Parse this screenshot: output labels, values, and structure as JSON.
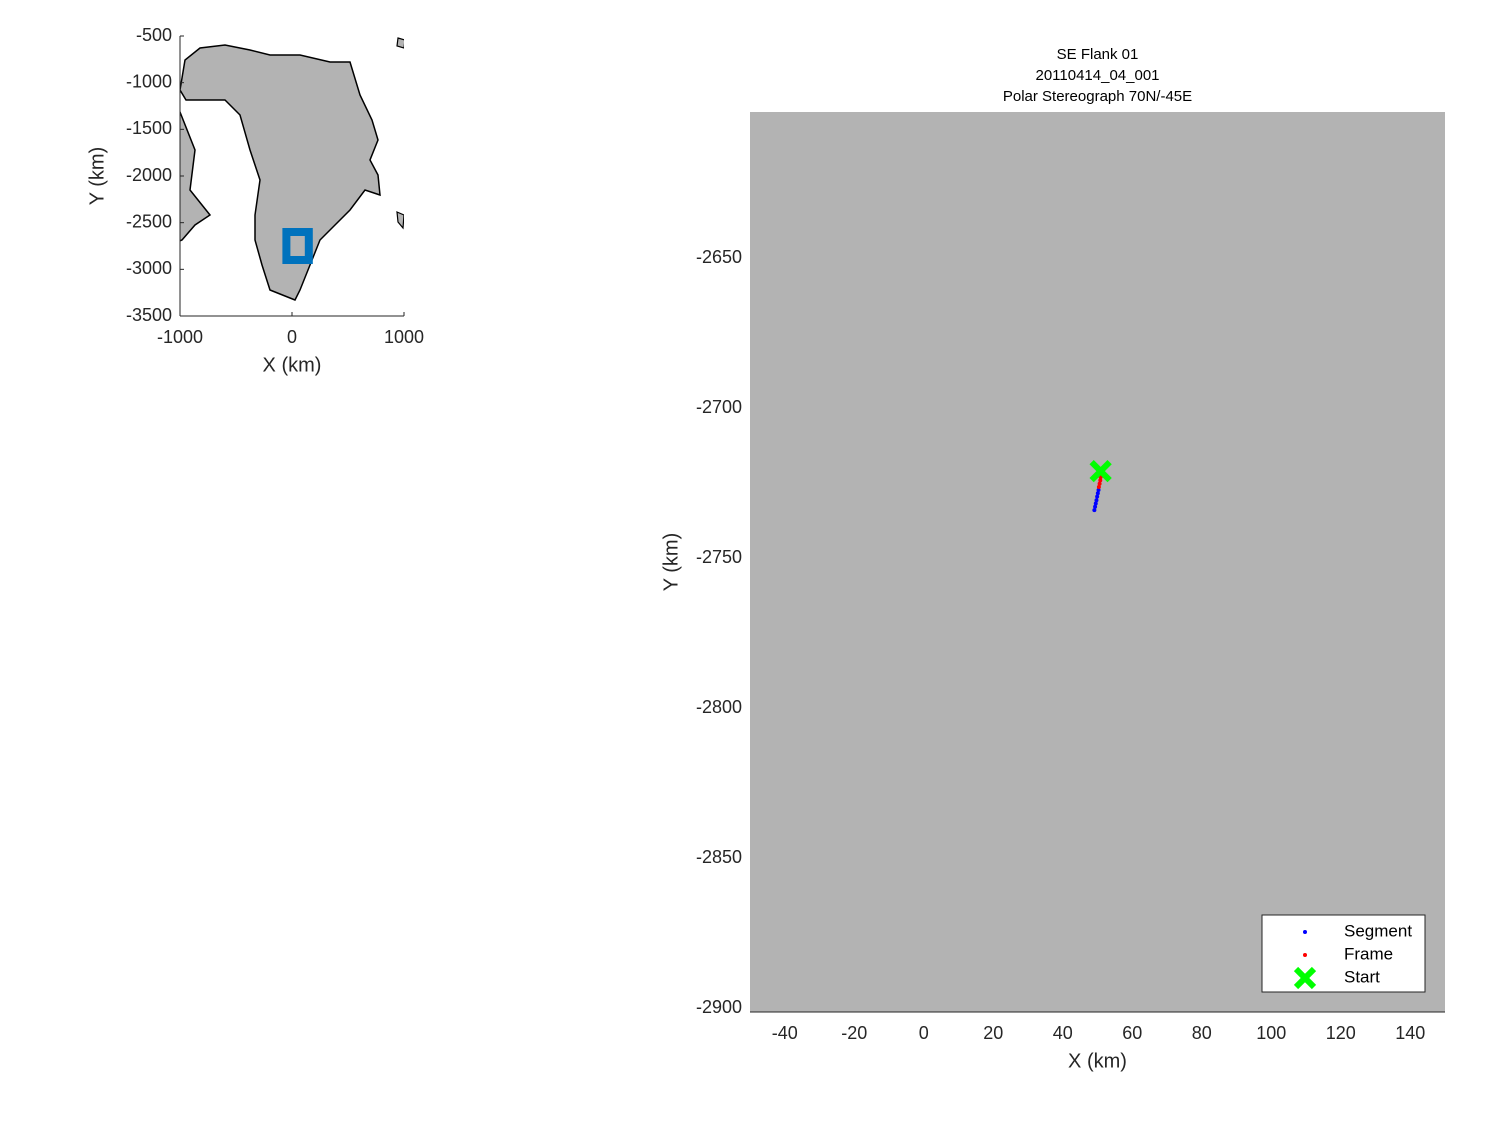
{
  "chart_data": [
    {
      "type": "map",
      "xlabel": "X (km)",
      "ylabel": "Y (km)",
      "xlim": [
        -1000,
        1000
      ],
      "ylim": [
        -3500,
        -500
      ],
      "xticks": [
        -1000,
        0,
        1000
      ],
      "yticks": [
        -3500,
        -3000,
        -2500,
        -2000,
        -1500,
        -1000,
        -500
      ],
      "rectangle": {
        "x": [
          -50,
          150
        ],
        "y": [
          -2900,
          -2600
        ],
        "color": "#0072bd"
      }
    },
    {
      "type": "scatter",
      "title": [
        "SE Flank 01",
        "20110414_04_001",
        "Polar Stereograph 70N/-45E"
      ],
      "xlabel": "X (km)",
      "ylabel": "Y (km)",
      "xlim": [
        -50,
        150
      ],
      "ylim": [
        -2900,
        -2600
      ],
      "xticks": [
        -40,
        -20,
        0,
        20,
        40,
        60,
        80,
        100,
        120,
        140
      ],
      "yticks": [
        -2900,
        -2850,
        -2800,
        -2750,
        -2700,
        -2650
      ],
      "legend": "southeast",
      "series": [
        {
          "name": "Segment",
          "color": "#0000ff",
          "marker": "dot",
          "x": [
            49.1,
            49.3,
            49.5,
            49.7,
            49.9,
            50.1,
            50.3
          ],
          "y": [
            -2732.7,
            -2731.6,
            -2730.5,
            -2729.4,
            -2728.2,
            -2727.1,
            -2726.0
          ]
        },
        {
          "name": "Frame",
          "color": "#ff0000",
          "marker": "dot",
          "x": [
            50.4,
            50.6,
            50.8,
            50.9
          ],
          "y": [
            -2725.0,
            -2723.9,
            -2722.8,
            -2721.7
          ]
        },
        {
          "name": "Start",
          "color": "#00ff00",
          "marker": "x",
          "x": [
            50.9
          ],
          "y": [
            -2719.7
          ]
        }
      ]
    }
  ]
}
